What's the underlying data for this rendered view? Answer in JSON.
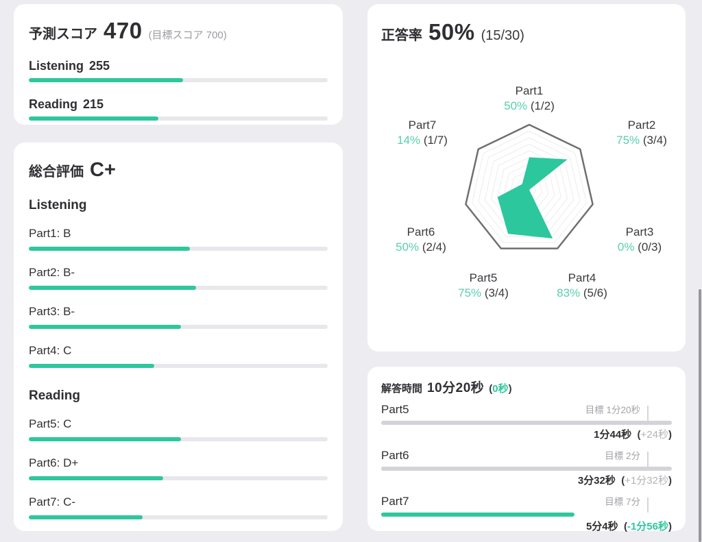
{
  "page": {
    "accent_color": "#2ec79e",
    "accent_text_color": "#58cfac",
    "background_color": "#ededf1"
  },
  "score_card": {
    "title": "予測スコア",
    "score": "470",
    "target_note": "(目標スコア 700)",
    "rows": [
      {
        "label": "Listening",
        "value": "255",
        "bar_pct": 51.5
      },
      {
        "label": "Reading",
        "value": "215",
        "bar_pct": 43.4
      }
    ]
  },
  "grade_card": {
    "title": "総合評価",
    "grade": "C+",
    "sections": [
      {
        "header": "Listening",
        "rows": [
          {
            "label": "Part1: B",
            "bar_pct": 54
          },
          {
            "label": "Part2: B-",
            "bar_pct": 56
          },
          {
            "label": "Part3: B-",
            "bar_pct": 51
          },
          {
            "label": "Part4: C",
            "bar_pct": 42
          }
        ]
      },
      {
        "header": "Reading",
        "rows": [
          {
            "label": "Part5: C",
            "bar_pct": 51
          },
          {
            "label": "Part6: D+",
            "bar_pct": 45
          },
          {
            "label": "Part7: C-",
            "bar_pct": 38
          }
        ]
      }
    ]
  },
  "accuracy_card": {
    "title": "正答率",
    "percent": "50%",
    "fraction": "(15/30)",
    "chart_data": {
      "type": "radar",
      "categories": [
        "Part1",
        "Part2",
        "Part3",
        "Part4",
        "Part5",
        "Part6",
        "Part7"
      ],
      "values_pct": [
        50,
        75,
        0,
        83,
        75,
        50,
        14
      ],
      "value_labels": [
        "50%",
        "75%",
        "0%",
        "83%",
        "75%",
        "50%",
        "14%"
      ],
      "fractions": [
        "(1/2)",
        "(3/4)",
        "(0/3)",
        "(5/6)",
        "(3/4)",
        "(2/4)",
        "(1/7)"
      ],
      "max": 100,
      "rings": 9,
      "fill_color": "#2cc79d",
      "outline_color": "#6e6e73",
      "grid_color": "#ececef",
      "label_color": "#58cfac"
    }
  },
  "time_card": {
    "title": "解答時間",
    "total": "10分20秒",
    "total_delta": "0秒",
    "rows": [
      {
        "part": "Part5",
        "target": "目標 1分20秒",
        "actual": "1分44秒",
        "delta": "+24秒",
        "delta_state": "over",
        "bar_pct": 100
      },
      {
        "part": "Part6",
        "target": "目標 2分",
        "actual": "3分32秒",
        "delta": "+1分32秒",
        "delta_state": "over",
        "bar_pct": 100
      },
      {
        "part": "Part7",
        "target": "目標 7分",
        "actual": "5分4秒",
        "delta": "-1分56秒",
        "delta_state": "under",
        "bar_pct": 66.5
      }
    ]
  }
}
